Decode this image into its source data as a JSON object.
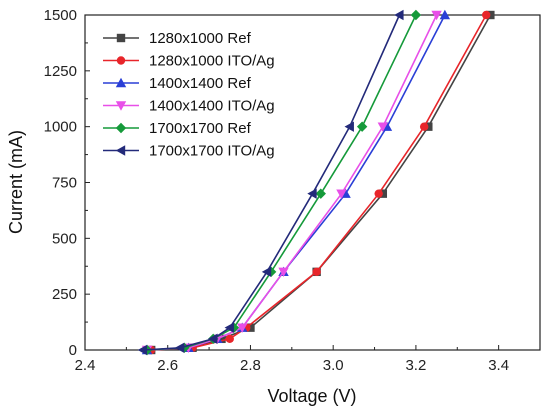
{
  "chart_data": {
    "type": "line",
    "xlabel": "Voltage (V)",
    "ylabel": "Current (mA)",
    "xlim": [
      2.4,
      3.5
    ],
    "ylim": [
      0,
      1500
    ],
    "xticks": [
      "2.4",
      "2.6",
      "2.8",
      "3.0",
      "3.2",
      "3.4"
    ],
    "yticks": [
      "0",
      "250",
      "500",
      "750",
      "1000",
      "1250",
      "1500"
    ],
    "grid": false,
    "legend_position": "top-left",
    "series": [
      {
        "name": "1280x1000 Ref",
        "color": "#444444",
        "marker": "square",
        "x": [
          2.56,
          2.66,
          2.73,
          2.8,
          2.96,
          3.12,
          3.23,
          3.38
        ],
        "y": [
          0,
          10,
          50,
          100,
          350,
          700,
          1000,
          1500
        ]
      },
      {
        "name": "1280x1000 ITO/Ag",
        "color": "#e8252a",
        "marker": "circle",
        "x": [
          2.56,
          2.66,
          2.75,
          2.79,
          2.96,
          3.11,
          3.22,
          3.37
        ],
        "y": [
          0,
          10,
          50,
          100,
          350,
          700,
          1000,
          1500
        ]
      },
      {
        "name": "1400x1400 Ref",
        "color": "#2a3fd6",
        "marker": "triangle-up",
        "x": [
          2.55,
          2.65,
          2.72,
          2.78,
          2.88,
          3.03,
          3.13,
          3.27
        ],
        "y": [
          0,
          10,
          50,
          100,
          350,
          700,
          1000,
          1500
        ]
      },
      {
        "name": "1400x1400 ITO/Ag",
        "color": "#e84fe8",
        "marker": "triangle-down",
        "x": [
          2.55,
          2.65,
          2.72,
          2.78,
          2.88,
          3.02,
          3.12,
          3.25
        ],
        "y": [
          0,
          10,
          50,
          100,
          350,
          700,
          1000,
          1500
        ]
      },
      {
        "name": "1700x1700 Ref",
        "color": "#159a3a",
        "marker": "diamond",
        "x": [
          2.55,
          2.64,
          2.71,
          2.76,
          2.85,
          2.97,
          3.07,
          3.2
        ],
        "y": [
          0,
          10,
          50,
          100,
          350,
          700,
          1000,
          1500
        ]
      },
      {
        "name": "1700x1700 ITO/Ag",
        "color": "#232a7a",
        "marker": "triangle-left",
        "x": [
          2.54,
          2.63,
          2.71,
          2.75,
          2.84,
          2.95,
          3.04,
          3.16
        ],
        "y": [
          0,
          10,
          50,
          100,
          350,
          700,
          1000,
          1500
        ]
      }
    ]
  }
}
